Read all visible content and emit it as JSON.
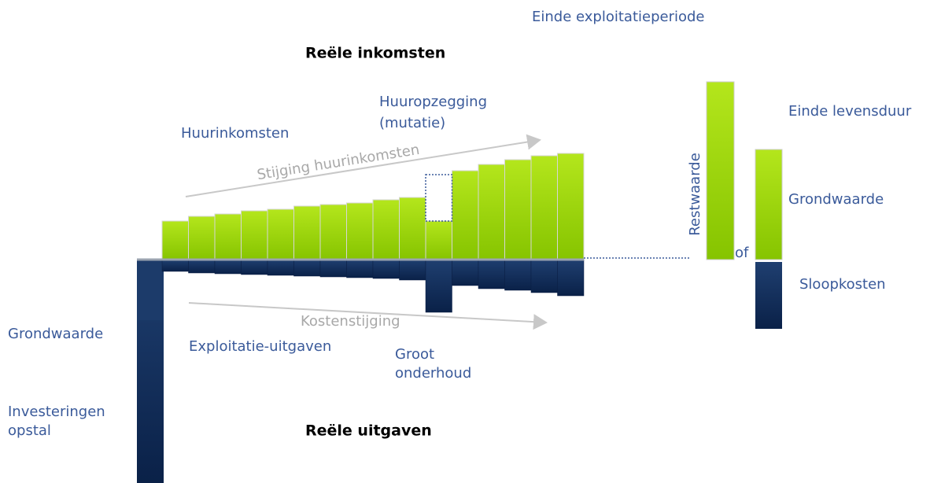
{
  "header": {
    "top_right": "Einde exploitatieperiode",
    "income": "Reële inkomsten",
    "expenses": "Reële uitgaven"
  },
  "labels": {
    "rent_income": "Huurinkomsten",
    "rent_increase": "Stijging huurinkomsten",
    "termination_1": "Huuropzegging",
    "termination_2": "(mutatie)",
    "end_of_life": "Einde levensduur",
    "residual": "Restwaarde",
    "or": "of",
    "land_value_right": "Grondwaarde",
    "demolition": "Sloopkosten",
    "land_value_left": "Grondwaarde",
    "operating_costs": "Exploitatie-uitgaven",
    "cost_increase": "Kostenstijging",
    "maintenance_1": "Groot",
    "maintenance_2": "onderhoud",
    "investment_1": "Investeringen",
    "investment_2": "opstal"
  }
}
